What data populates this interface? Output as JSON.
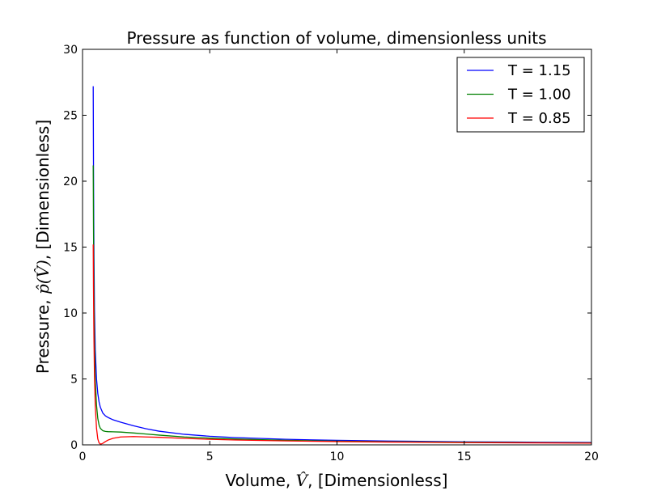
{
  "chart_data": {
    "type": "line",
    "title": "Pressure as function of volume, dimensionless units",
    "xlabel": {
      "prefix": "Volume, ",
      "symbol": "V̂",
      "suffix": ", [Dimensionless]"
    },
    "ylabel": {
      "prefix": "Pressure, ",
      "symbol": "p̂(V̂)",
      "suffix": ", [Dimensionless]"
    },
    "xlim": [
      0,
      20
    ],
    "ylim": [
      0,
      30
    ],
    "x_ticks": [
      "0",
      "5",
      "10",
      "15",
      "20"
    ],
    "y_ticks": [
      "0",
      "5",
      "10",
      "15",
      "20",
      "25",
      "30"
    ],
    "grid": false,
    "legend_position": "top-right",
    "series": [
      {
        "name": "T = 1.15",
        "color": "#0000ff",
        "points": [
          [
            0.42,
            27.2
          ],
          [
            0.43,
            21.5
          ],
          [
            0.44,
            17.3
          ],
          [
            0.45,
            14.2
          ],
          [
            0.47,
            10.2
          ],
          [
            0.5,
            7.2
          ],
          [
            0.55,
            5.0
          ],
          [
            0.6,
            3.9
          ],
          [
            0.65,
            3.25
          ],
          [
            0.7,
            2.85
          ],
          [
            0.8,
            2.4
          ],
          [
            0.9,
            2.2
          ],
          [
            1.0,
            2.08
          ],
          [
            1.2,
            1.9
          ],
          [
            1.5,
            1.72
          ],
          [
            2.0,
            1.45
          ],
          [
            2.5,
            1.22
          ],
          [
            3.0,
            1.04
          ],
          [
            4.0,
            0.8
          ],
          [
            5.0,
            0.65
          ],
          [
            6.0,
            0.55
          ],
          [
            8.0,
            0.42
          ],
          [
            10.0,
            0.34
          ],
          [
            12.0,
            0.29
          ],
          [
            15.0,
            0.23
          ],
          [
            18.0,
            0.2
          ],
          [
            20.0,
            0.18
          ]
        ]
      },
      {
        "name": "T = 1.00",
        "color": "#008000",
        "points": [
          [
            0.42,
            21.2
          ],
          [
            0.43,
            16.8
          ],
          [
            0.44,
            13.5
          ],
          [
            0.45,
            11.0
          ],
          [
            0.47,
            7.7
          ],
          [
            0.5,
            5.0
          ],
          [
            0.55,
            3.0
          ],
          [
            0.6,
            2.0
          ],
          [
            0.65,
            1.5
          ],
          [
            0.7,
            1.25
          ],
          [
            0.8,
            1.07
          ],
          [
            0.9,
            1.02
          ],
          [
            1.0,
            1.0
          ],
          [
            1.2,
            0.99
          ],
          [
            1.5,
            0.97
          ],
          [
            2.0,
            0.9
          ],
          [
            2.5,
            0.82
          ],
          [
            3.0,
            0.74
          ],
          [
            4.0,
            0.6
          ],
          [
            5.0,
            0.51
          ],
          [
            6.0,
            0.44
          ],
          [
            8.0,
            0.34
          ],
          [
            10.0,
            0.28
          ],
          [
            12.0,
            0.24
          ],
          [
            15.0,
            0.2
          ],
          [
            18.0,
            0.17
          ],
          [
            20.0,
            0.15
          ]
        ]
      },
      {
        "name": "T = 0.85",
        "color": "#ff0000",
        "points": [
          [
            0.42,
            15.2
          ],
          [
            0.43,
            12.0
          ],
          [
            0.44,
            9.6
          ],
          [
            0.45,
            7.8
          ],
          [
            0.47,
            5.2
          ],
          [
            0.5,
            3.0
          ],
          [
            0.55,
            1.25
          ],
          [
            0.6,
            0.45
          ],
          [
            0.65,
            0.15
          ],
          [
            0.7,
            0.06
          ],
          [
            0.75,
            0.08
          ],
          [
            0.8,
            0.12
          ],
          [
            0.9,
            0.25
          ],
          [
            1.0,
            0.36
          ],
          [
            1.2,
            0.5
          ],
          [
            1.5,
            0.6
          ],
          [
            2.0,
            0.63
          ],
          [
            2.5,
            0.6
          ],
          [
            3.0,
            0.57
          ],
          [
            4.0,
            0.49
          ],
          [
            5.0,
            0.42
          ],
          [
            6.0,
            0.37
          ],
          [
            8.0,
            0.3
          ],
          [
            10.0,
            0.25
          ],
          [
            12.0,
            0.21
          ],
          [
            15.0,
            0.17
          ],
          [
            18.0,
            0.15
          ],
          [
            20.0,
            0.13
          ]
        ]
      }
    ]
  }
}
